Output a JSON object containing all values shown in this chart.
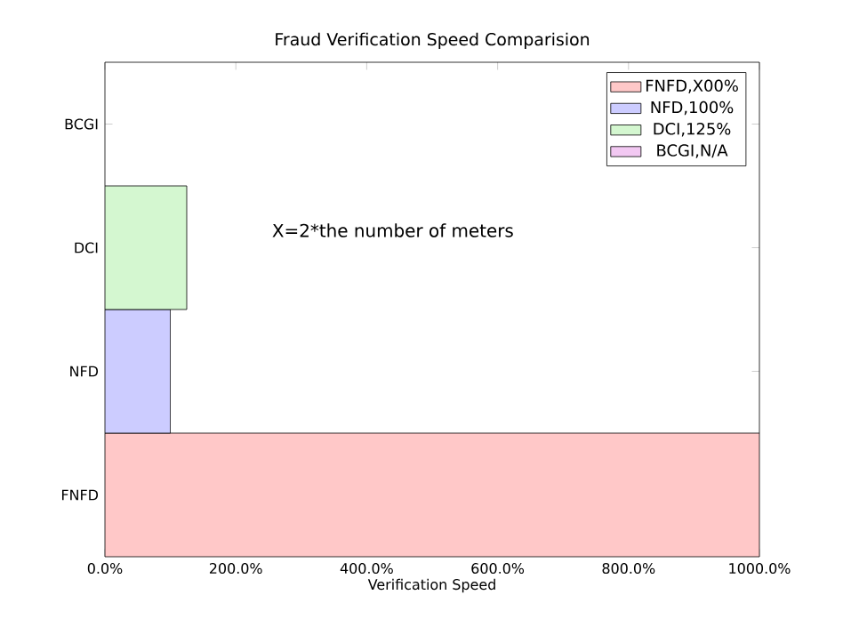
{
  "chart_data": {
    "type": "bar",
    "orientation": "horizontal",
    "title": "Fraud Verification Speed Comparision",
    "xlabel": "Verification Speed",
    "categories": [
      "BCGI",
      "DCI",
      "NFD",
      "FNFD"
    ],
    "series": [
      {
        "name": "FNFD,X00%",
        "color": "#ffc8c8",
        "values": [
          null,
          null,
          null,
          1000
        ]
      },
      {
        "name": "NFD,100%",
        "color": "#ccccff",
        "values": [
          null,
          null,
          100,
          null
        ]
      },
      {
        "name": "DCI,125%",
        "color": "#d4f7d0",
        "values": [
          null,
          125,
          null,
          null
        ]
      },
      {
        "name": "BCGI,N/A",
        "color": "#f2c8f2",
        "values": [
          null,
          null,
          null,
          null
        ]
      }
    ],
    "xlim": [
      0,
      1000
    ],
    "xticks": [
      {
        "value": 0,
        "label": "0.0%"
      },
      {
        "value": 200,
        "label": "200.0%"
      },
      {
        "value": 400,
        "label": "400.0%"
      },
      {
        "value": 600,
        "label": "600.0%"
      },
      {
        "value": 800,
        "label": "800.0%"
      },
      {
        "value": 1000,
        "label": "1000.0%"
      }
    ],
    "annotations": [
      "X=2*the number of meters"
    ],
    "legend": "top right",
    "grid": false
  }
}
